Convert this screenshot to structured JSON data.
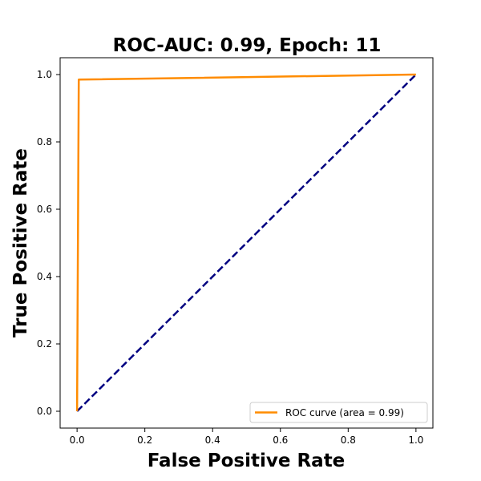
{
  "chart_data": {
    "type": "line",
    "title": "ROC-AUC: 0.99, Epoch: 11",
    "xlabel": "False Positive Rate",
    "ylabel": "True Positive Rate",
    "xlim": [
      -0.05,
      1.05
    ],
    "ylim": [
      -0.05,
      1.05
    ],
    "xticks": [
      0.0,
      0.2,
      0.4,
      0.6,
      0.8,
      1.0
    ],
    "yticks": [
      0.0,
      0.2,
      0.4,
      0.6,
      0.8,
      1.0
    ],
    "xtick_labels": [
      "0.0",
      "0.2",
      "0.4",
      "0.6",
      "0.8",
      "1.0"
    ],
    "ytick_labels": [
      "0.0",
      "0.2",
      "0.4",
      "0.6",
      "0.8",
      "1.0"
    ],
    "grid": false,
    "legend_position": "lower-right",
    "series": [
      {
        "name": "ROC curve (area = 0.99)",
        "color": "#ff8c00",
        "style": "solid",
        "x": [
          0.0,
          0.005,
          1.0
        ],
        "y": [
          0.0,
          0.985,
          1.0
        ]
      },
      {
        "color": "#000080",
        "style": "dashed",
        "x": [
          0.0,
          1.0
        ],
        "y": [
          0.0,
          1.0
        ]
      }
    ]
  }
}
